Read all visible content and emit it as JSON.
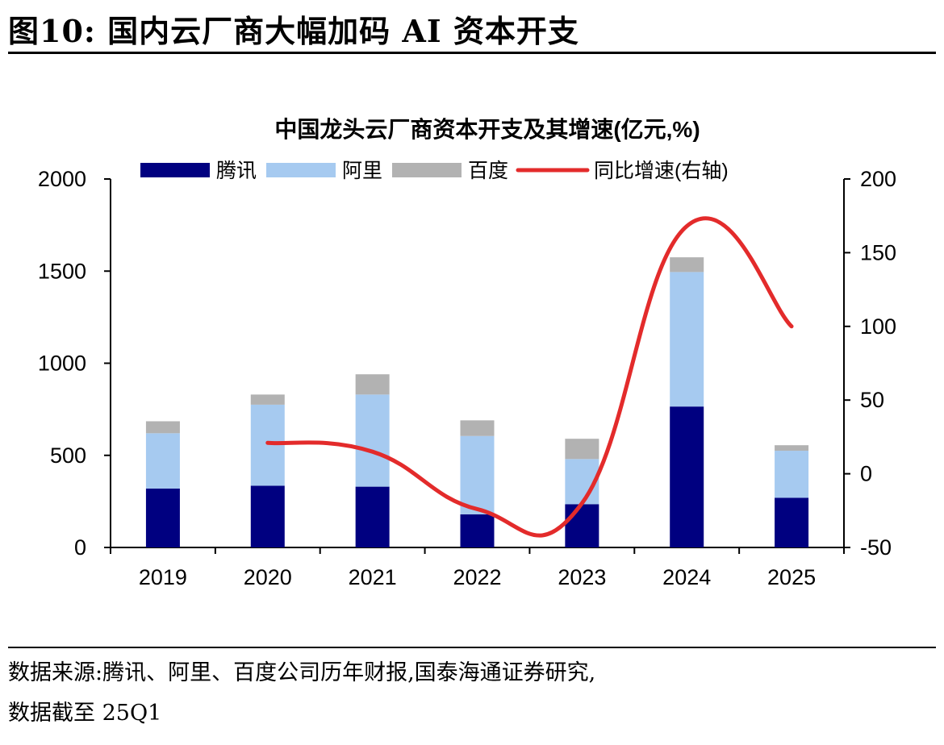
{
  "figure": {
    "label": "图10:",
    "title": "国内云厂商大幅加码 AI 资本开支"
  },
  "source": {
    "line1": "数据来源:腾讯、阿里、百度公司历年财报,国泰海通证券研究,",
    "line2": "数据截至 25Q1"
  },
  "chart_data": {
    "type": "bar",
    "stacked": true,
    "title": "中国龙头云厂商资本开支及其增速(亿元,%)",
    "categories": [
      "2019",
      "2020",
      "2021",
      "2022",
      "2023",
      "2024",
      "2025"
    ],
    "series": [
      {
        "name": "腾讯",
        "color": "#000080",
        "values": [
          320,
          335,
          330,
          180,
          235,
          765,
          270
        ]
      },
      {
        "name": "阿里",
        "color": "#a6caf0",
        "values": [
          300,
          440,
          500,
          425,
          245,
          730,
          255
        ]
      },
      {
        "name": "百度",
        "color": "#b2b2b2",
        "values": [
          65,
          55,
          110,
          85,
          110,
          80,
          30
        ]
      }
    ],
    "line_series": {
      "name": "同比增速(右轴)",
      "color": "#e32b2b",
      "axis": "right",
      "x": [
        "2020",
        "2021",
        "2022",
        "2023",
        "2024",
        "2025"
      ],
      "values": [
        21,
        15,
        -24,
        -20,
        168,
        100
      ]
    },
    "y_left": {
      "min": 0,
      "max": 2000,
      "ticks": [
        0,
        500,
        1000,
        1500,
        2000
      ]
    },
    "y_right": {
      "min": -50,
      "max": 200,
      "ticks": [
        -50,
        0,
        50,
        100,
        150,
        200
      ]
    },
    "legend_position": "top",
    "grid": false
  }
}
